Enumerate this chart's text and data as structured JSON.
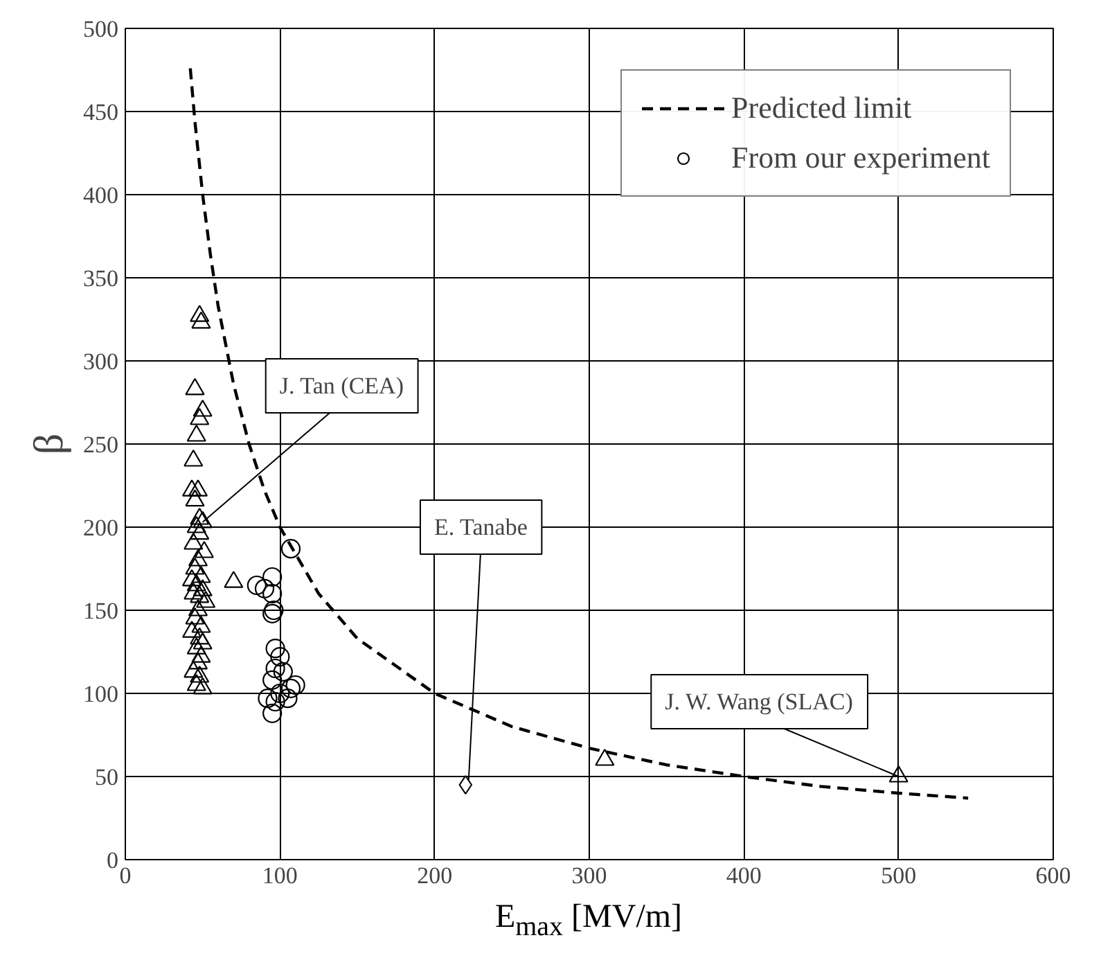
{
  "chart_data": {
    "type": "scatter",
    "xlabel": "E$_{max}$ [MV/m]",
    "ylabel": "β",
    "xlim": [
      0,
      600
    ],
    "ylim": [
      0,
      500
    ],
    "xticks": [
      0,
      100,
      200,
      300,
      400,
      500,
      600
    ],
    "yticks": [
      0,
      50,
      100,
      150,
      200,
      250,
      300,
      350,
      400,
      450,
      500
    ],
    "grid": true,
    "legend": "top right",
    "series": [
      {
        "name": "Predicted limit",
        "type": "line",
        "line_style": "dashed",
        "marker": "none",
        "color": "#000000",
        "x": [
          42,
          45,
          50,
          55,
          60,
          70,
          80,
          90,
          100,
          125,
          150,
          200,
          250,
          300,
          350,
          400,
          450,
          500,
          545
        ],
        "values": [
          476,
          444,
          400,
          364,
          333,
          286,
          250,
          222,
          200,
          160,
          133,
          100,
          80,
          67,
          57,
          50,
          44,
          40,
          37
        ]
      },
      {
        "name": "From our experiment",
        "marker": "circle",
        "color": "#000000",
        "x": [
          85,
          90,
          95,
          95,
          96,
          95,
          107,
          97,
          100,
          95,
          97,
          92,
          97,
          100,
          107,
          110,
          105,
          95,
          102
        ],
        "values": [
          165,
          163,
          170,
          160,
          150,
          148,
          187,
          127,
          122,
          108,
          115,
          97,
          95,
          100,
          103,
          105,
          97,
          88,
          113
        ]
      },
      {
        "marker": "triangle",
        "color": "#000000",
        "x": [
          48,
          49,
          45,
          50,
          48,
          46,
          44,
          43,
          47,
          45,
          48,
          50,
          46,
          48,
          44,
          51,
          47,
          45,
          49,
          43,
          46,
          50,
          44,
          48,
          52,
          47,
          45,
          49,
          43,
          48,
          50,
          46,
          49,
          47,
          44,
          48,
          46,
          50,
          70
        ],
        "values": [
          327,
          323,
          283,
          270,
          265,
          255,
          240,
          222,
          222,
          216,
          205,
          203,
          200,
          196,
          190,
          185,
          180,
          175,
          170,
          168,
          165,
          162,
          160,
          158,
          155,
          150,
          145,
          140,
          137,
          133,
          130,
          127,
          122,
          118,
          113,
          110,
          105,
          103,
          167
        ]
      },
      {
        "marker": "diamond",
        "color": "#000000",
        "x": [
          220
        ],
        "values": [
          45
        ]
      },
      {
        "marker": "triangle",
        "color": "#000000",
        "x": [
          310,
          500
        ],
        "values": [
          60,
          50
        ]
      }
    ],
    "annotations": [
      {
        "text": "J. Tan (CEA)",
        "x": 50,
        "y": 203
      },
      {
        "text": "E. Tanabe",
        "x": 222,
        "y": 48
      },
      {
        "text": "J. W. Wang (SLAC)",
        "x": 500,
        "y": 50
      }
    ]
  }
}
